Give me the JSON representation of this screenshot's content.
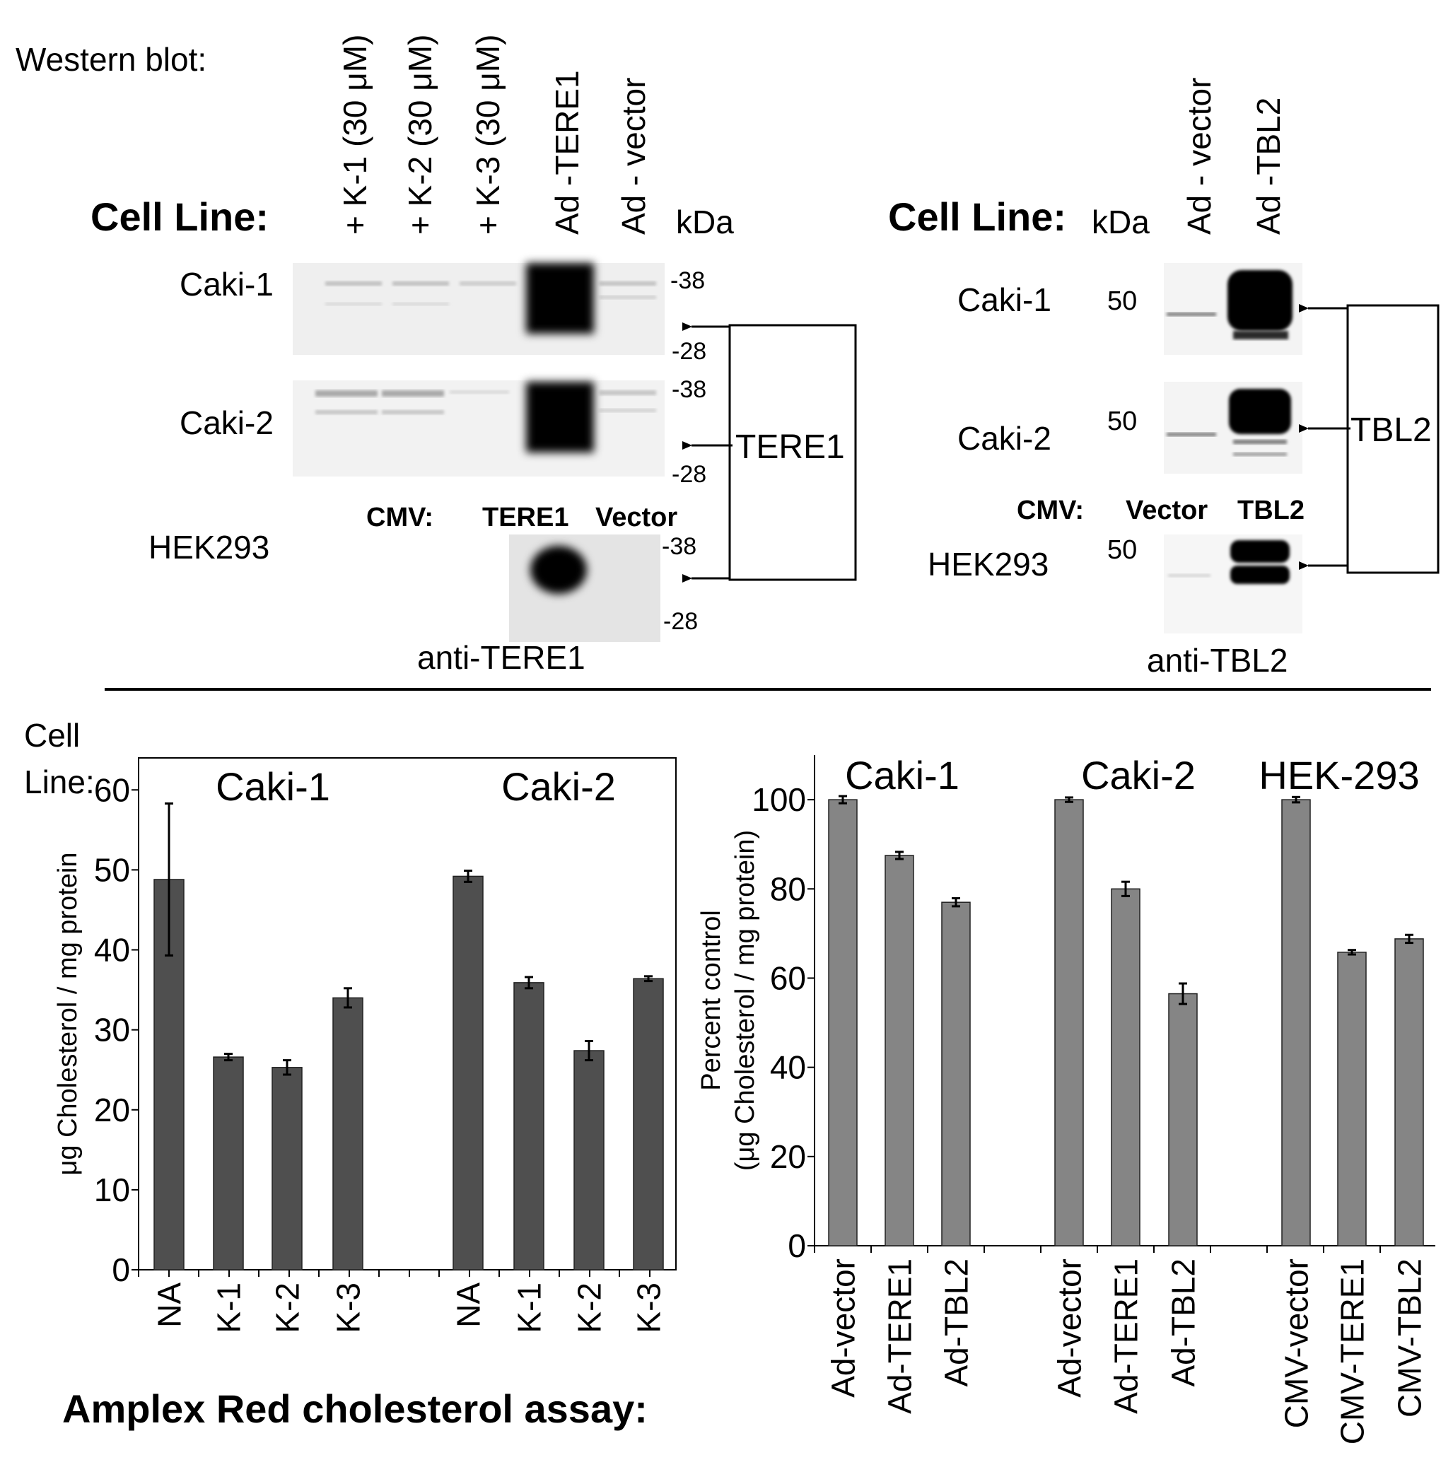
{
  "western_blot": {
    "heading": "Western blot:",
    "left": {
      "cell_line_label": "Cell Line:",
      "lanes": [
        "+ K-1 (30 μM)",
        "+ K-2 (30 μM)",
        "+ K-3 (30 μM)",
        "Ad -TERE1",
        "Ad - vector"
      ],
      "kda_label": "kDa",
      "rows": [
        {
          "name": "Caki-1",
          "marker_top": "-38",
          "marker_bottom": "-28"
        },
        {
          "name": "Caki-2",
          "marker_top": "-38",
          "marker_bottom": "-28"
        },
        {
          "name": "HEK293",
          "marker_top": "-38",
          "marker_bottom": "-28"
        }
      ],
      "cmv_label": "CMV:",
      "cmv_lanes": [
        "TERE1",
        "Vector"
      ],
      "target_label": "TERE1",
      "antibody": "anti-TERE1"
    },
    "right": {
      "cell_line_label": "Cell Line:",
      "kda_label": "kDa",
      "lanes": [
        "Ad - vector",
        "Ad -TBL2"
      ],
      "rows": [
        {
          "name": "Caki-1",
          "marker": "50"
        },
        {
          "name": "Caki-2",
          "marker": "50"
        },
        {
          "name": "HEK293",
          "marker": "50"
        }
      ],
      "cmv_label": "CMV:",
      "cmv_lanes": [
        "Vector",
        "TBL2"
      ],
      "target_label": "TBL2",
      "antibody": "anti-TBL2"
    }
  },
  "assay_title": "Amplex Red cholesterol assay:",
  "cell_line_label": "Cell Line:",
  "colors": {
    "left_bars": "#4f4f4f",
    "right_bars": "#858585",
    "error_bars": "#000000"
  },
  "chart_data": [
    {
      "type": "bar",
      "ylabel": "μg Cholesterol / mg protein",
      "ylim": [
        0,
        64
      ],
      "yticks": [
        0,
        10,
        20,
        30,
        40,
        50,
        60
      ],
      "groups": [
        "Caki-1",
        "Caki-2"
      ],
      "categories": [
        "NA",
        "K-1",
        "K-2",
        "K-3",
        "NA",
        "K-1",
        "K-2",
        "K-3"
      ],
      "group_index": [
        0,
        0,
        0,
        0,
        1,
        1,
        1,
        1
      ],
      "values": [
        48.8,
        26.6,
        25.3,
        34.0,
        49.2,
        35.9,
        27.4,
        36.4
      ],
      "errors": [
        9.5,
        0.4,
        0.9,
        1.2,
        0.7,
        0.7,
        1.2,
        0.3
      ]
    },
    {
      "type": "bar",
      "ylabel": "Percent control",
      "ylabel2": "(μg Cholesterol / mg protein)",
      "ylim": [
        0,
        110
      ],
      "yticks": [
        0,
        20,
        40,
        60,
        80,
        100
      ],
      "groups": [
        "Caki-1",
        "Caki-2",
        "HEK-293"
      ],
      "categories": [
        "Ad-vector",
        "Ad-TERE1",
        "Ad-TBL2",
        "Ad-vector",
        "Ad-TERE1",
        "Ad-TBL2",
        "CMV-vector",
        "CMV-TERE1",
        "CMV-TBL2"
      ],
      "group_index": [
        0,
        0,
        0,
        1,
        1,
        1,
        2,
        2,
        2
      ],
      "values": [
        100.0,
        87.5,
        77.0,
        100.0,
        80.0,
        56.5,
        100.0,
        65.8,
        68.8
      ],
      "errors": [
        0.8,
        0.8,
        0.9,
        0.5,
        1.6,
        2.3,
        0.6,
        0.5,
        0.9
      ]
    }
  ]
}
